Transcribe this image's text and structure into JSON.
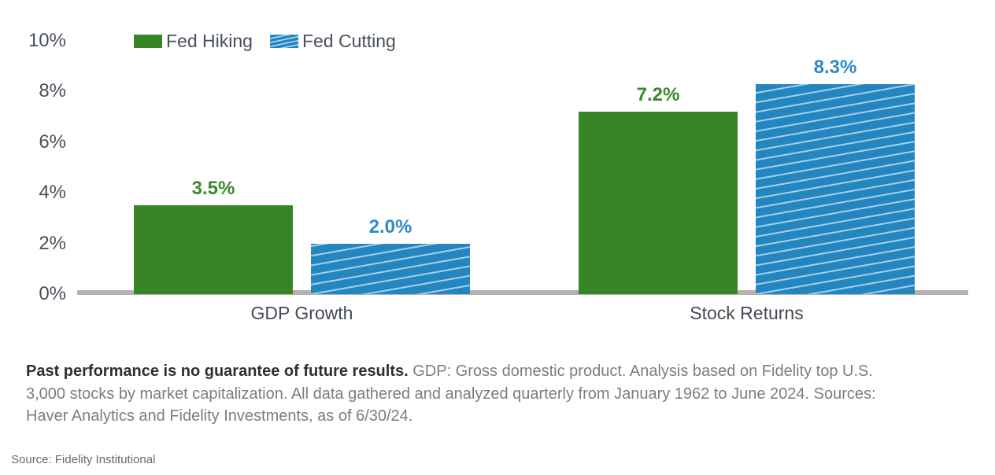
{
  "chart_data": {
    "type": "bar",
    "title": "",
    "categories": [
      "GDP Growth",
      "Stock Returns"
    ],
    "series": [
      {
        "name": "Fed Hiking",
        "values": [
          3.5,
          7.2
        ],
        "value_labels": [
          "3.5%",
          "7.2%"
        ],
        "color": "#388527",
        "label_color": "#3a8a2b",
        "pattern": "solid"
      },
      {
        "name": "Fed Cutting",
        "values": [
          2.0,
          8.3
        ],
        "value_labels": [
          "2.0%",
          "8.3%"
        ],
        "color": "#2386c1",
        "label_color": "#2e8bc8",
        "pattern": "diagonal-stripes"
      }
    ],
    "y_ticks": [
      {
        "label": "10%",
        "value": 10
      },
      {
        "label": "8%",
        "value": 8
      },
      {
        "label": "6%",
        "value": 6
      },
      {
        "label": "4%",
        "value": 4
      },
      {
        "label": "2%",
        "value": 2
      },
      {
        "label": "0%",
        "value": 0
      }
    ],
    "ylim": [
      0,
      10
    ],
    "xlabel": "",
    "ylabel": "",
    "grid": false,
    "legend_position": "top-left"
  },
  "footnote": {
    "bold": "Past performance is no guarantee of future results.",
    "rest": " GDP: Gross domestic product. Analysis based on Fidelity top U.S. 3,000 stocks by market capitalization. All data gathered and analyzed quarterly from January 1962 to June 2024. Sources: Haver Analytics and Fidelity Investments, as of 6/30/24."
  },
  "source_line": "Source: Fidelity Institutional",
  "colors": {
    "background": "#ffffff",
    "axis_line": "#b2b2b2",
    "tick_text": "#47505a",
    "category_text": "#434b54",
    "legend_text": "#47505a",
    "footnote_bold": "#2f2f2f",
    "footnote_text": "#7d7d7d",
    "source_text": "#616b72"
  }
}
